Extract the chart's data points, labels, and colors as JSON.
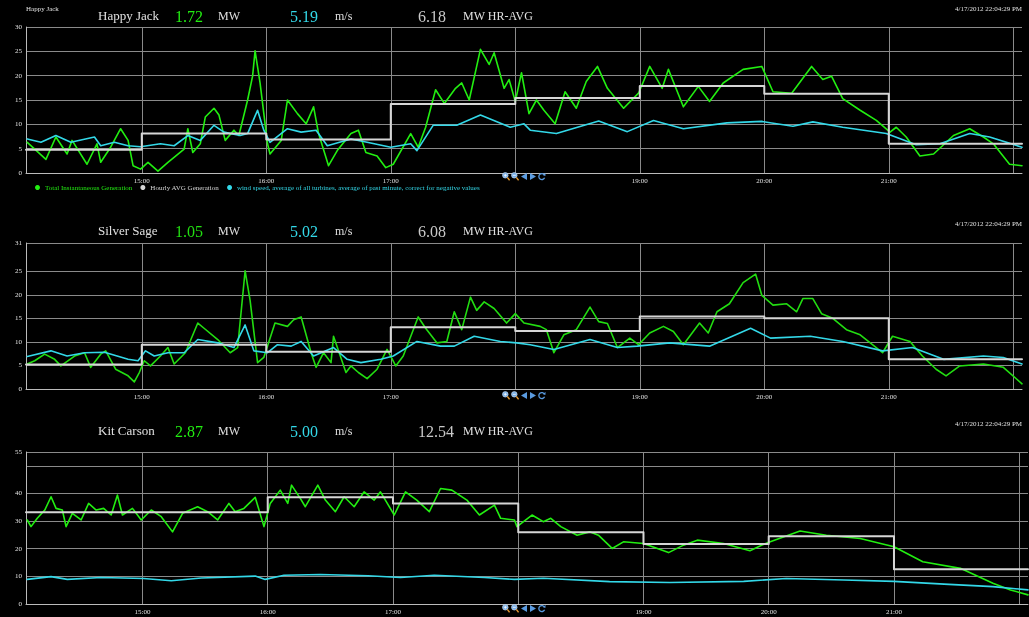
{
  "chart_data": [
    {
      "type": "line",
      "title": "Happy Jack",
      "subtitle": "Happy Jack",
      "annotations": [
        "1.72",
        "MW",
        "5.19",
        "m/s",
        "6.18",
        "MW HR-AVG",
        "4/17/2012 22:04:29 PM"
      ],
      "xlim": [
        14.07,
        22.07
      ],
      "xticks": [
        {
          "value": 15,
          "label": "15:00"
        },
        {
          "value": 16,
          "label": "16:00"
        },
        {
          "value": 17,
          "label": "17:00"
        },
        {
          "value": 18,
          "label": null
        },
        {
          "value": 19,
          "label": "19:00"
        },
        {
          "value": 20,
          "label": "20:00"
        },
        {
          "value": 21,
          "label": "21:00"
        },
        {
          "value": 22,
          "label": null
        }
      ],
      "ylim": [
        0,
        30
      ],
      "yticks": [
        0,
        5,
        10,
        15,
        20,
        25,
        30
      ],
      "grid": true,
      "legend": "bottom left",
      "series": [
        {
          "name": "Total Instantaneous Generation",
          "type": "line",
          "color": "#22ee11",
          "x": [
            14.08,
            14.14,
            14.23,
            14.31,
            14.4,
            14.44,
            14.56,
            14.64,
            14.67,
            14.75,
            14.83,
            14.89,
            14.93,
            14.99,
            15.05,
            15.13,
            15.21,
            15.34,
            15.37,
            15.41,
            15.47,
            15.51,
            15.58,
            15.62,
            15.67,
            15.74,
            15.78,
            15.85,
            15.89,
            15.91,
            15.95,
            16.01,
            16.03,
            16.12,
            16.17,
            16.25,
            16.32,
            16.38,
            16.42,
            16.5,
            16.57,
            16.68,
            16.74,
            16.8,
            16.89,
            16.96,
            17.02,
            17.16,
            17.22,
            17.28,
            17.36,
            17.43,
            17.52,
            17.57,
            17.63,
            17.72,
            17.79,
            17.83,
            17.91,
            17.95,
            18.0,
            18.05,
            18.11,
            18.17,
            18.23,
            18.32,
            18.4,
            18.49,
            18.57,
            18.66,
            18.74,
            18.87,
            18.99,
            19.08,
            19.18,
            19.23,
            19.35,
            19.47,
            19.56,
            19.67,
            19.83,
            19.98,
            20.07,
            20.22,
            20.38,
            20.47,
            20.54,
            20.63,
            20.77,
            20.9,
            21.01,
            21.06,
            21.14,
            21.25,
            21.36,
            21.52,
            21.65,
            21.76,
            21.84,
            21.97,
            22.07
          ],
          "values": [
            6.3,
            4.9,
            2.8,
            7.4,
            3.9,
            6.7,
            1.8,
            6.0,
            2.2,
            5.3,
            9.1,
            6.7,
            1.5,
            0.8,
            2.2,
            0.4,
            2.2,
            4.9,
            9.1,
            4.2,
            6.0,
            11.5,
            13.3,
            11.9,
            6.7,
            8.8,
            7.7,
            15.0,
            19.9,
            25.1,
            18.5,
            6.0,
            3.9,
            6.7,
            15.0,
            12.2,
            10.1,
            13.6,
            8.1,
            1.5,
            4.6,
            8.1,
            8.8,
            4.2,
            3.5,
            1.1,
            1.8,
            8.1,
            5.3,
            9.4,
            17.1,
            14.3,
            17.4,
            18.5,
            15.0,
            25.4,
            22.3,
            24.7,
            17.4,
            19.2,
            14.7,
            20.6,
            12.2,
            15.0,
            12.9,
            10.1,
            16.7,
            13.3,
            18.8,
            21.9,
            17.4,
            13.3,
            16.4,
            21.9,
            17.4,
            21.3,
            13.6,
            17.8,
            14.7,
            18.5,
            21.3,
            21.9,
            16.7,
            16.4,
            21.9,
            19.2,
            19.9,
            15.3,
            12.9,
            10.8,
            8.4,
            9.4,
            7.4,
            3.5,
            3.9,
            7.7,
            9.1,
            7.4,
            6.0,
            1.8,
            1.5
          ]
        },
        {
          "name": "Hourly AVG Generation",
          "type": "step",
          "color": "#d6d6d6",
          "x": [
            14.07,
            15,
            16,
            17,
            18,
            19,
            20,
            21,
            22.07
          ],
          "values": [
            4.8,
            8.1,
            6.9,
            14.2,
            15.4,
            17.9,
            16.3,
            6.0,
            6.0
          ]
        },
        {
          "name": "wind speed, average of all turbines, average of past minute, correct for negative values",
          "type": "line",
          "color": "#33d8e8",
          "x": [
            14.08,
            14.19,
            14.31,
            14.43,
            14.62,
            14.67,
            14.78,
            14.89,
            14.99,
            15.15,
            15.26,
            15.37,
            15.47,
            15.58,
            15.66,
            15.79,
            15.85,
            15.93,
            15.98,
            16.03,
            16.17,
            16.28,
            16.4,
            16.49,
            16.68,
            16.81,
            17.0,
            17.16,
            17.21,
            17.34,
            17.53,
            17.72,
            17.96,
            18.07,
            18.12,
            18.33,
            18.67,
            18.9,
            19.11,
            19.35,
            19.7,
            19.98,
            20.23,
            20.39,
            20.63,
            20.98,
            21.22,
            21.41,
            21.65,
            21.81,
            22.07
          ],
          "values": [
            7.0,
            6.3,
            7.7,
            6.3,
            7.4,
            5.6,
            6.3,
            5.6,
            5.4,
            6.0,
            5.6,
            7.7,
            6.7,
            9.8,
            8.4,
            7.7,
            8.1,
            12.9,
            8.8,
            6.3,
            9.1,
            8.4,
            8.8,
            5.6,
            7.0,
            6.3,
            5.3,
            6.0,
            4.6,
            9.8,
            9.8,
            11.9,
            9.4,
            10.1,
            8.8,
            8.1,
            10.7,
            8.5,
            10.8,
            9.1,
            10.3,
            10.6,
            9.6,
            10.5,
            9.4,
            8.1,
            5.8,
            6.0,
            8.1,
            7.4,
            5.3
          ]
        }
      ]
    },
    {
      "type": "line",
      "title": "Silver Sage",
      "annotations": [
        "1.05",
        "MW",
        "5.02",
        "m/s",
        "6.08",
        "MW HR-AVG",
        "4/17/2012 22:04:29 PM"
      ],
      "xlim": [
        14.07,
        22.07
      ],
      "xticks": [
        {
          "value": 15,
          "label": "15:00"
        },
        {
          "value": 16,
          "label": "16:00"
        },
        {
          "value": 17,
          "label": "17:00"
        },
        {
          "value": 18,
          "label": null
        },
        {
          "value": 19,
          "label": "19:00"
        },
        {
          "value": 20,
          "label": "20:00"
        },
        {
          "value": 21,
          "label": "21:00"
        },
        {
          "value": 22,
          "label": null
        }
      ],
      "ylim": [
        0,
        31
      ],
      "yticks": [
        0,
        5,
        10,
        15,
        20,
        25,
        31
      ],
      "grid": true,
      "series": [
        {
          "type": "line",
          "color": "#22dd11",
          "x": [
            14.08,
            14.14,
            14.22,
            14.3,
            14.35,
            14.46,
            14.54,
            14.59,
            14.67,
            14.71,
            14.79,
            14.89,
            14.94,
            14.98,
            15.02,
            15.07,
            15.15,
            15.21,
            15.26,
            15.35,
            15.45,
            15.5,
            15.61,
            15.71,
            15.77,
            15.83,
            15.87,
            15.93,
            15.98,
            16.07,
            16.17,
            16.22,
            16.28,
            16.36,
            16.4,
            16.46,
            16.52,
            16.54,
            16.64,
            16.68,
            16.74,
            16.81,
            16.89,
            16.97,
            17.04,
            17.1,
            17.22,
            17.28,
            17.37,
            17.45,
            17.51,
            17.57,
            17.64,
            17.69,
            17.75,
            17.83,
            17.93,
            18.0,
            18.07,
            18.2,
            18.25,
            18.31,
            18.39,
            18.49,
            18.6,
            18.67,
            18.74,
            18.82,
            18.92,
            18.99,
            19.08,
            19.19,
            19.27,
            19.35,
            19.48,
            19.55,
            19.62,
            19.72,
            19.83,
            19.93,
            19.98,
            20.07,
            20.18,
            20.26,
            20.31,
            20.39,
            20.46,
            20.55,
            20.66,
            20.77,
            20.95,
            21.03,
            21.17,
            21.27,
            21.38,
            21.46,
            21.57,
            21.76,
            21.92,
            22.07
          ],
          "values": [
            5.3,
            6.0,
            7.4,
            6.3,
            4.9,
            7.0,
            7.7,
            4.6,
            7.4,
            8.1,
            4.2,
            2.8,
            1.5,
            3.5,
            6.0,
            4.9,
            7.0,
            8.8,
            5.3,
            7.7,
            14.0,
            12.9,
            10.5,
            7.7,
            8.8,
            25.1,
            18.8,
            5.6,
            6.7,
            14.0,
            13.3,
            14.7,
            15.3,
            7.7,
            4.6,
            7.7,
            5.6,
            11.2,
            3.5,
            4.9,
            3.5,
            2.2,
            4.2,
            8.4,
            4.9,
            7.0,
            15.3,
            12.9,
            9.8,
            10.1,
            16.4,
            12.6,
            19.5,
            16.7,
            18.5,
            17.1,
            14.0,
            16.0,
            14.0,
            13.3,
            12.6,
            7.7,
            11.5,
            12.6,
            17.4,
            14.3,
            13.9,
            8.8,
            10.8,
            9.4,
            11.9,
            13.3,
            12.2,
            9.4,
            14.0,
            11.9,
            16.4,
            18.1,
            22.6,
            24.4,
            19.9,
            17.8,
            18.1,
            16.4,
            19.2,
            19.2,
            16.0,
            15.0,
            12.6,
            11.5,
            7.7,
            11.2,
            10.1,
            7.0,
            4.2,
            2.8,
            4.9,
            5.3,
            4.6,
            1.1
          ]
        },
        {
          "type": "step",
          "color": "#d6d6d6",
          "x": [
            14.07,
            15,
            16,
            17,
            18,
            19,
            20,
            21,
            22.07
          ],
          "values": [
            5.2,
            9.4,
            7.9,
            13.1,
            12.3,
            15.4,
            15.0,
            6.3,
            6.3
          ]
        },
        {
          "type": "line",
          "color": "#33d8e8",
          "x": [
            14.08,
            14.27,
            14.4,
            14.54,
            14.7,
            14.89,
            14.97,
            15.03,
            15.1,
            15.21,
            15.34,
            15.45,
            15.61,
            15.74,
            15.83,
            15.9,
            16.01,
            16.09,
            16.2,
            16.28,
            16.38,
            16.54,
            16.65,
            16.76,
            16.92,
            17.02,
            17.21,
            17.4,
            17.51,
            17.67,
            17.88,
            18.01,
            18.12,
            18.31,
            18.6,
            18.82,
            18.98,
            19.24,
            19.56,
            19.89,
            20.05,
            20.37,
            20.63,
            20.95,
            21.19,
            21.44,
            21.76,
            21.92,
            22.07
          ],
          "values": [
            6.9,
            8.1,
            7.0,
            7.7,
            7.8,
            6.3,
            6.0,
            8.1,
            7.0,
            7.7,
            7.7,
            10.5,
            9.8,
            8.8,
            13.6,
            8.1,
            7.7,
            9.4,
            9.1,
            10.1,
            7.0,
            8.8,
            6.3,
            5.6,
            6.3,
            7.0,
            10.1,
            9.1,
            9.1,
            11.2,
            10.1,
            9.8,
            9.4,
            8.4,
            10.5,
            8.8,
            9.1,
            9.8,
            9.1,
            12.9,
            10.8,
            11.2,
            10.1,
            8.1,
            8.8,
            6.3,
            7.0,
            6.7,
            5.3
          ]
        }
      ]
    },
    {
      "type": "line",
      "title": "Kit Carson",
      "annotations": [
        "2.87",
        "MW",
        "5.00",
        "m/s",
        "12.54",
        "MW HR-AVG",
        "4/17/2012 22:04:29 PM"
      ],
      "xlim": [
        14.07,
        22.07
      ],
      "xticks": [
        {
          "value": 15,
          "label": "15:00"
        },
        {
          "value": 16,
          "label": "16:00"
        },
        {
          "value": 17,
          "label": "17:00"
        },
        {
          "value": 18,
          "label": null
        },
        {
          "value": 19,
          "label": "19:00"
        },
        {
          "value": 20,
          "label": "20:00"
        },
        {
          "value": 21,
          "label": "21:00"
        },
        {
          "value": 22,
          "label": null
        }
      ],
      "ylim": [
        0,
        55
      ],
      "yticks": [
        0,
        10,
        20,
        30,
        40,
        {
          "value": 50,
          "label": null
        },
        55
      ],
      "grid": true,
      "series": [
        {
          "type": "line",
          "color": "#22ee11",
          "x": [
            14.08,
            14.11,
            14.16,
            14.22,
            14.27,
            14.31,
            14.36,
            14.39,
            14.44,
            14.51,
            14.57,
            14.63,
            14.69,
            14.75,
            14.8,
            14.84,
            14.92,
            14.99,
            15.07,
            15.15,
            15.24,
            15.32,
            15.44,
            15.52,
            15.6,
            15.69,
            15.74,
            15.81,
            15.9,
            15.97,
            16.02,
            16.1,
            16.16,
            16.19,
            16.26,
            16.3,
            16.4,
            16.46,
            16.54,
            16.61,
            16.69,
            16.77,
            16.85,
            16.9,
            17.01,
            17.1,
            17.19,
            17.29,
            17.38,
            17.47,
            17.59,
            17.69,
            17.81,
            17.86,
            17.97,
            17.99,
            18.11,
            18.2,
            18.26,
            18.34,
            18.47,
            18.57,
            18.64,
            18.75,
            18.84,
            19.0,
            19.2,
            19.32,
            19.43,
            19.64,
            19.85,
            19.99,
            20.25,
            20.46,
            20.73,
            21.0,
            21.23,
            21.53,
            21.79,
            21.93,
            22.07
          ],
          "values": [
            30.4,
            28.0,
            31.0,
            34.0,
            38.8,
            34.6,
            34.0,
            28.0,
            32.8,
            30.4,
            36.4,
            34.0,
            34.6,
            32.2,
            39.4,
            32.2,
            34.6,
            30.4,
            34.0,
            31.6,
            26.1,
            32.8,
            35.2,
            33.4,
            30.4,
            36.4,
            33.4,
            34.6,
            38.6,
            28.0,
            36.4,
            41.2,
            36.4,
            43.0,
            38.2,
            35.2,
            43.0,
            37.6,
            33.4,
            38.8,
            35.2,
            40.6,
            37.6,
            40.6,
            32.2,
            40.6,
            37.6,
            33.4,
            41.8,
            41.2,
            37.6,
            32.2,
            35.8,
            31.0,
            30.4,
            28.0,
            32.2,
            29.8,
            31.0,
            28.0,
            24.9,
            26.1,
            24.9,
            20.1,
            22.5,
            21.9,
            18.6,
            21.3,
            23.1,
            21.9,
            19.3,
            22.2,
            26.4,
            24.9,
            23.7,
            20.7,
            15.3,
            12.9,
            7.5,
            5.1,
            3.3
          ]
        },
        {
          "type": "step",
          "color": "#d6d6d6",
          "x": [
            14.07,
            16,
            17,
            18,
            19,
            20,
            21,
            22.07
          ],
          "values": [
            33.2,
            38.6,
            36.4,
            26.0,
            21.7,
            24.5,
            12.6,
            12.6
          ]
        },
        {
          "type": "line",
          "color": "#33d8e8",
          "x": [
            14.08,
            14.27,
            14.4,
            14.67,
            15.01,
            15.23,
            15.47,
            15.9,
            15.98,
            16.13,
            16.42,
            16.8,
            17.06,
            17.33,
            17.73,
            17.97,
            18.2,
            18.73,
            19.21,
            19.8,
            20.14,
            20.6,
            21.0,
            21.4,
            21.79,
            22.07
          ],
          "values": [
            8.9,
            9.9,
            8.9,
            9.6,
            9.2,
            8.4,
            9.4,
            10.1,
            8.9,
            10.4,
            10.7,
            10.2,
            9.6,
            10.4,
            9.6,
            8.9,
            9.3,
            8.1,
            7.8,
            8.2,
            9.2,
            8.7,
            8.2,
            7.2,
            6.3,
            5.1
          ]
        }
      ]
    }
  ]
}
